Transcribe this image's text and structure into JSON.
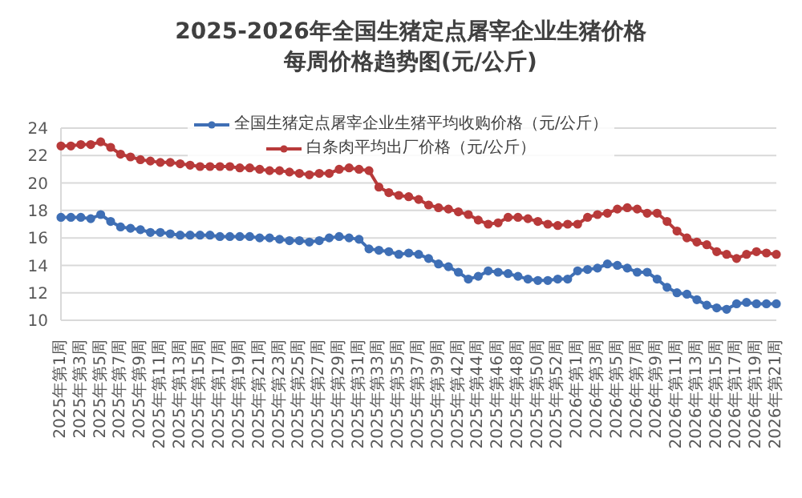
{
  "chart_data": {
    "type": "line",
    "title": "2025-2026年全国生猪定点屠宰企业生猪价格",
    "subtitle": "每周价格趋势图(元/公斤)",
    "categories": [
      "2025年第1周",
      null,
      "2025年第3周",
      null,
      "2025年第5周",
      null,
      "2025年第7周",
      null,
      "2025年第9周",
      null,
      "2025年第11周",
      null,
      "2025年第13周",
      null,
      "2025年第15周",
      null,
      "2025年第17周",
      null,
      "2025年第19周",
      null,
      "2025年第21周",
      null,
      "2025年第23周",
      null,
      "2025年第25周",
      null,
      "2025年第27周",
      null,
      "2025年第29周",
      null,
      "2025年第31周",
      null,
      "2025年第33周",
      null,
      "2025年第35周",
      null,
      "2025年第37周",
      null,
      "2025年第39周",
      null,
      "2025年第42周",
      null,
      "2025年第44周",
      null,
      "2025年第46周",
      null,
      "2025年第48周",
      null,
      "2025年第50周",
      null,
      "2025年第52周",
      null,
      "2026年第1周",
      null,
      "2026年第3周",
      null,
      "2026年第5周",
      null,
      "2026年第7周",
      null,
      "2026年第9周",
      null,
      "2026年第11周",
      null,
      "2026年第13周",
      null,
      "2026年第15周",
      null,
      "2026年第17周",
      null,
      "2026年第19周",
      null,
      "2026年第21周"
    ],
    "series": [
      {
        "name": "全国生猪定点屠宰企业生猪平均收购价格（元/公斤）",
        "color": "#3f6fb5",
        "values": [
          17.5,
          17.5,
          17.5,
          17.4,
          17.7,
          17.2,
          16.8,
          16.7,
          16.6,
          16.4,
          16.4,
          16.3,
          16.2,
          16.2,
          16.2,
          16.2,
          16.1,
          16.1,
          16.1,
          16.1,
          16.0,
          16.0,
          15.9,
          15.8,
          15.8,
          15.7,
          15.8,
          16.0,
          16.1,
          16.0,
          15.9,
          15.2,
          15.1,
          15.0,
          14.8,
          14.9,
          14.8,
          14.5,
          14.1,
          13.9,
          13.5,
          13.0,
          13.2,
          13.6,
          13.5,
          13.4,
          13.2,
          13.0,
          12.9,
          12.9,
          13.0,
          13.0,
          13.6,
          13.7,
          13.8,
          14.1,
          14.0,
          13.8,
          13.5,
          13.5,
          13.0,
          12.4,
          12.0,
          11.9,
          11.5,
          11.1,
          10.9,
          10.8,
          11.2,
          11.3,
          11.2,
          11.2,
          11.2
        ]
      },
      {
        "name": "白条肉平均出厂价格（元/公斤）",
        "color": "#b83a3a",
        "values": [
          22.7,
          22.7,
          22.8,
          22.8,
          23.0,
          22.6,
          22.1,
          21.9,
          21.7,
          21.6,
          21.5,
          21.5,
          21.4,
          21.3,
          21.2,
          21.2,
          21.2,
          21.2,
          21.1,
          21.1,
          21.0,
          20.9,
          20.9,
          20.8,
          20.7,
          20.6,
          20.7,
          20.7,
          21.0,
          21.1,
          21.0,
          20.9,
          19.7,
          19.3,
          19.1,
          19.0,
          18.8,
          18.4,
          18.2,
          18.1,
          17.9,
          17.7,
          17.3,
          17.0,
          17.1,
          17.5,
          17.5,
          17.4,
          17.2,
          17.0,
          16.9,
          17.0,
          17.0,
          17.5,
          17.7,
          17.8,
          18.1,
          18.2,
          18.1,
          17.8,
          17.8,
          17.2,
          16.5,
          16.0,
          15.7,
          15.5,
          15.0,
          14.8,
          14.5,
          14.8,
          15.0,
          14.9,
          14.8
        ]
      }
    ],
    "ylim": [
      10,
      24
    ],
    "yticks": [
      10,
      12,
      14,
      16,
      18,
      20,
      22,
      24
    ],
    "grid": "y",
    "legend": "top",
    "marker": "circle",
    "line_style": "solid"
  }
}
